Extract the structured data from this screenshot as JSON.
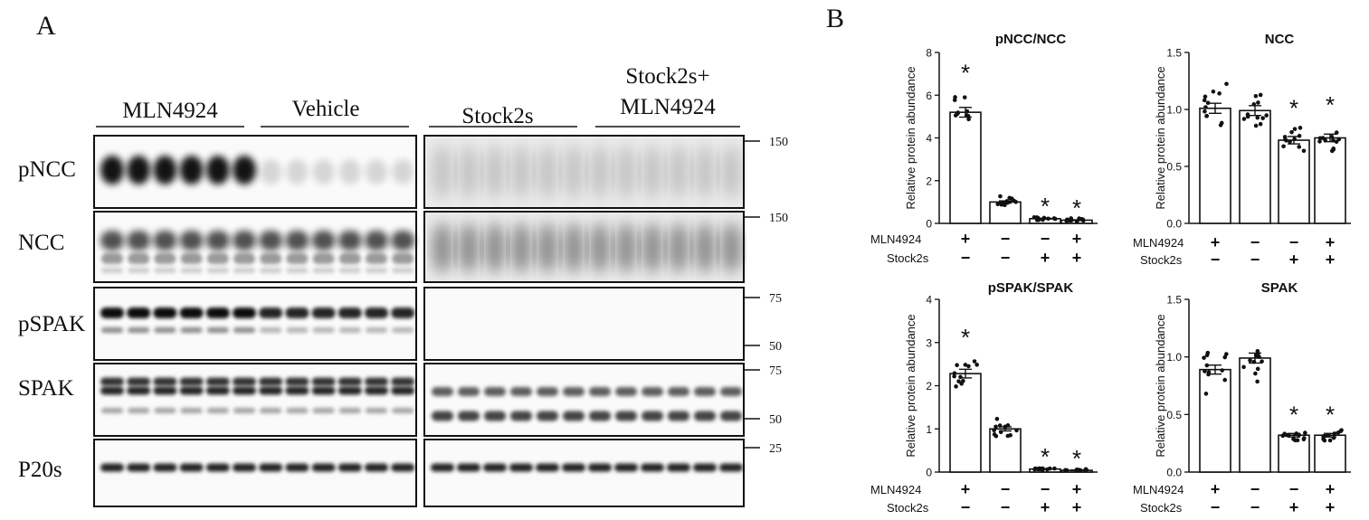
{
  "panel_a": {
    "letter": "A",
    "groups": [
      "MLN4924",
      "Vehicle",
      "Stock2s",
      "Stock2s+",
      "MLN4924"
    ],
    "blots": [
      {
        "name": "pNCC",
        "markers": [
          "150"
        ]
      },
      {
        "name": "NCC",
        "markers": [
          "150"
        ]
      },
      {
        "name": "pSPAK",
        "markers": [
          "75",
          "50"
        ]
      },
      {
        "name": "SPAK",
        "markers": [
          "75",
          "50"
        ]
      },
      {
        "name": "P20s",
        "markers": [
          "25"
        ]
      }
    ]
  },
  "panel_b": {
    "letter": "B",
    "row_labels": {
      "mln": "MLN4924",
      "stock": "Stock2s"
    },
    "treatment_marks": {
      "mln": [
        "+",
        "−",
        "−",
        "+"
      ],
      "stock": [
        "−",
        "−",
        "+",
        "+"
      ]
    },
    "significance_mark": "*"
  },
  "chart_data": [
    {
      "type": "bar",
      "title": "pNCC/NCC",
      "ylabel": "Relative protein abundance",
      "ylim": [
        0,
        8
      ],
      "yticks": [
        "0",
        "2",
        "4",
        "6",
        "8"
      ],
      "values": [
        5.2,
        1.0,
        0.22,
        0.15
      ],
      "significant": [
        true,
        false,
        true,
        true
      ]
    },
    {
      "type": "bar",
      "title": "NCC",
      "ylabel": "Relative protein abundance",
      "ylim": [
        0,
        1.5
      ],
      "yticks": [
        "0.0",
        "0.5",
        "1.0",
        "1.5"
      ],
      "values": [
        1.01,
        0.99,
        0.73,
        0.75
      ],
      "significant": [
        false,
        false,
        true,
        true
      ]
    },
    {
      "type": "bar",
      "title": "pSPAK/SPAK",
      "ylabel": "Relative protein abundance",
      "ylim": [
        0,
        4
      ],
      "yticks": [
        "0",
        "1",
        "2",
        "3",
        "4"
      ],
      "values": [
        2.28,
        1.0,
        0.07,
        0.04
      ],
      "significant": [
        true,
        false,
        true,
        true
      ]
    },
    {
      "type": "bar",
      "title": "SPAK",
      "ylabel": "Relative protein abundance",
      "ylim": [
        0,
        1.5
      ],
      "yticks": [
        "0.0",
        "0.5",
        "1.0",
        "1.5"
      ],
      "values": [
        0.89,
        0.99,
        0.32,
        0.32
      ],
      "significant": [
        false,
        false,
        true,
        true
      ]
    }
  ]
}
